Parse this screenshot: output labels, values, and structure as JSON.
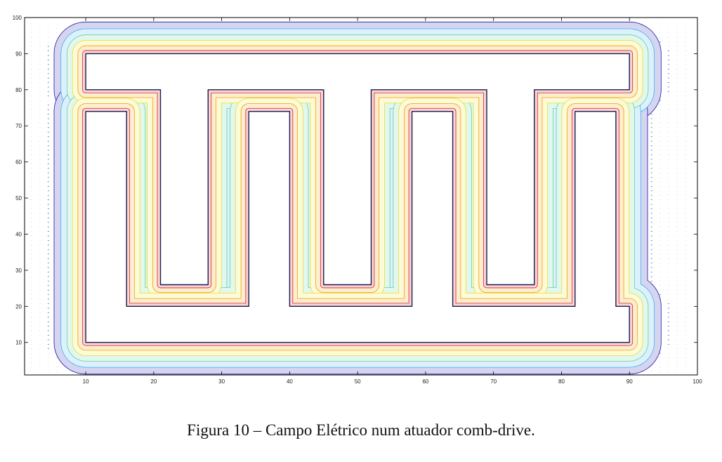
{
  "caption": "Figura 10 – Campo Elétrico num atuador comb-drive.",
  "chart_data": {
    "type": "contour",
    "xlim": [
      1,
      100
    ],
    "ylim": [
      1,
      100
    ],
    "xticks": [
      10,
      20,
      30,
      40,
      50,
      60,
      70,
      80,
      90,
      100
    ],
    "yticks": [
      10,
      20,
      30,
      40,
      50,
      60,
      70,
      80,
      90,
      100
    ],
    "grid": false,
    "legend": "none",
    "electrode_outlines": [
      {
        "name": "upper comb",
        "points": [
          [
            10,
            90
          ],
          [
            90,
            90
          ],
          [
            90,
            80
          ],
          [
            76,
            80
          ],
          [
            76,
            26
          ],
          [
            69,
            26
          ],
          [
            69,
            80
          ],
          [
            52,
            80
          ],
          [
            52,
            26
          ],
          [
            45,
            26
          ],
          [
            45,
            80
          ],
          [
            28,
            80
          ],
          [
            28,
            26
          ],
          [
            21,
            26
          ],
          [
            21,
            80
          ],
          [
            10,
            80
          ],
          [
            10,
            90
          ]
        ]
      },
      {
        "name": "lower comb",
        "points": [
          [
            10,
            74
          ],
          [
            16,
            74
          ],
          [
            16,
            20
          ],
          [
            34,
            20
          ],
          [
            34,
            74
          ],
          [
            40,
            74
          ],
          [
            40,
            20
          ],
          [
            58,
            20
          ],
          [
            58,
            74
          ],
          [
            64,
            74
          ],
          [
            64,
            20
          ],
          [
            82,
            20
          ],
          [
            82,
            74
          ],
          [
            88,
            74
          ],
          [
            88,
            20
          ],
          [
            90,
            20
          ],
          [
            90,
            10
          ],
          [
            10,
            10
          ],
          [
            10,
            74
          ]
        ]
      }
    ],
    "contour_offsets": [
      0.5,
      1.2,
      2.0,
      2.8,
      3.7,
      4.7
    ],
    "contour_colors": [
      "#d62020",
      "#f5a000",
      "#e8e030",
      "#60d0a0",
      "#40b0f0",
      "#1a1aa8"
    ],
    "quiver_color": "#3a3aa0",
    "quiver_grid_step": 1.25
  }
}
